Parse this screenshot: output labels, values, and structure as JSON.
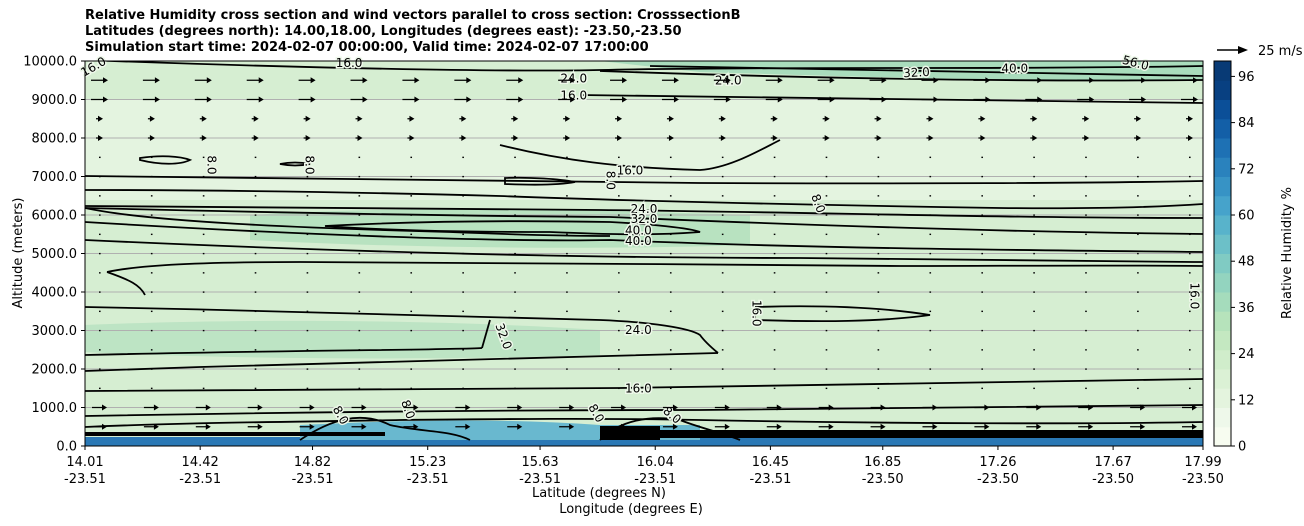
{
  "title_lines": [
    "Relative Humidity cross section and wind vectors parallel to cross section: CrosssectionB",
    "Latitudes (degrees north): 14.00,18.00, Longitudes (degrees east): -23.50,-23.50",
    "Simulation start time: 2024-02-07 00:00:00, Valid time: 2024-02-07 17:00:00"
  ],
  "chart_data": {
    "type": "heatmap",
    "ylabel": "Altitude (meters)",
    "xlabel_1": "Latitude (degrees N)",
    "xlabel_2": "Longitude (degrees E)",
    "ylim": [
      0,
      10000
    ],
    "y_ticks": [
      "0.0",
      "1000.0",
      "2000.0",
      "3000.0",
      "4000.0",
      "5000.0",
      "6000.0",
      "7000.0",
      "8000.0",
      "9000.0",
      "10000.0"
    ],
    "x_ticks": [
      {
        "lat": "14.01",
        "lon": "-23.51"
      },
      {
        "lat": "14.42",
        "lon": "-23.51"
      },
      {
        "lat": "14.82",
        "lon": "-23.51"
      },
      {
        "lat": "15.23",
        "lon": "-23.51"
      },
      {
        "lat": "15.63",
        "lon": "-23.51"
      },
      {
        "lat": "16.04",
        "lon": "-23.51"
      },
      {
        "lat": "16.45",
        "lon": "-23.51"
      },
      {
        "lat": "16.85",
        "lon": "-23.50"
      },
      {
        "lat": "17.26",
        "lon": "-23.50"
      },
      {
        "lat": "17.67",
        "lon": "-23.50"
      },
      {
        "lat": "17.99",
        "lon": "-23.50"
      }
    ],
    "grid": true,
    "colorbar": {
      "label": "Relative Humidity %",
      "range": [
        0,
        100
      ],
      "ticks": [
        "0",
        "12",
        "24",
        "36",
        "48",
        "60",
        "72",
        "84",
        "96"
      ]
    },
    "quiver_key": "25 m/s",
    "contour_labels": [
      {
        "text": "16.0",
        "x": 14.04,
        "y": 9850,
        "rot": -30
      },
      {
        "text": "16.0",
        "x": 14.95,
        "y": 9950,
        "rot": 0
      },
      {
        "text": "24.0",
        "x": 15.75,
        "y": 9540,
        "rot": 0
      },
      {
        "text": "24.0",
        "x": 16.3,
        "y": 9500,
        "rot": 0
      },
      {
        "text": "32.0",
        "x": 16.97,
        "y": 9700,
        "rot": -3
      },
      {
        "text": "40.0",
        "x": 17.32,
        "y": 9800,
        "rot": 0
      },
      {
        "text": "56.0",
        "x": 17.75,
        "y": 9950,
        "rot": 15
      },
      {
        "text": "16.0",
        "x": 15.75,
        "y": 9100,
        "rot": 0
      },
      {
        "text": "8.0",
        "x": 14.46,
        "y": 7300,
        "rot": 90
      },
      {
        "text": "8.0",
        "x": 14.81,
        "y": 7300,
        "rot": 90
      },
      {
        "text": "8.0",
        "x": 15.88,
        "y": 6900,
        "rot": 90
      },
      {
        "text": "16.0",
        "x": 15.95,
        "y": 7150,
        "rot": 0
      },
      {
        "text": "8.0",
        "x": 16.62,
        "y": 6300,
        "rot": 70
      },
      {
        "text": "24.0",
        "x": 16.0,
        "y": 6150,
        "rot": 0
      },
      {
        "text": "32.0",
        "x": 16.0,
        "y": 5900,
        "rot": 0
      },
      {
        "text": "40.0",
        "x": 15.98,
        "y": 5600,
        "rot": 0
      },
      {
        "text": "40.0",
        "x": 15.98,
        "y": 5330,
        "rot": 0
      },
      {
        "text": "16.0",
        "x": 16.4,
        "y": 3450,
        "rot": 90
      },
      {
        "text": "16.0",
        "x": 17.96,
        "y": 3900,
        "rot": 90
      },
      {
        "text": "32.0",
        "x": 15.5,
        "y": 2850,
        "rot": 70
      },
      {
        "text": "24.0",
        "x": 15.98,
        "y": 3010,
        "rot": 0
      },
      {
        "text": "16.0",
        "x": 15.98,
        "y": 1500,
        "rot": 0
      },
      {
        "text": "8.0",
        "x": 14.92,
        "y": 800,
        "rot": 60
      },
      {
        "text": "8.0",
        "x": 15.16,
        "y": 950,
        "rot": 70
      },
      {
        "text": "8.0",
        "x": 15.83,
        "y": 850,
        "rot": 60
      },
      {
        "text": "8.0",
        "x": 16.1,
        "y": 800,
        "rot": 40
      }
    ]
  }
}
